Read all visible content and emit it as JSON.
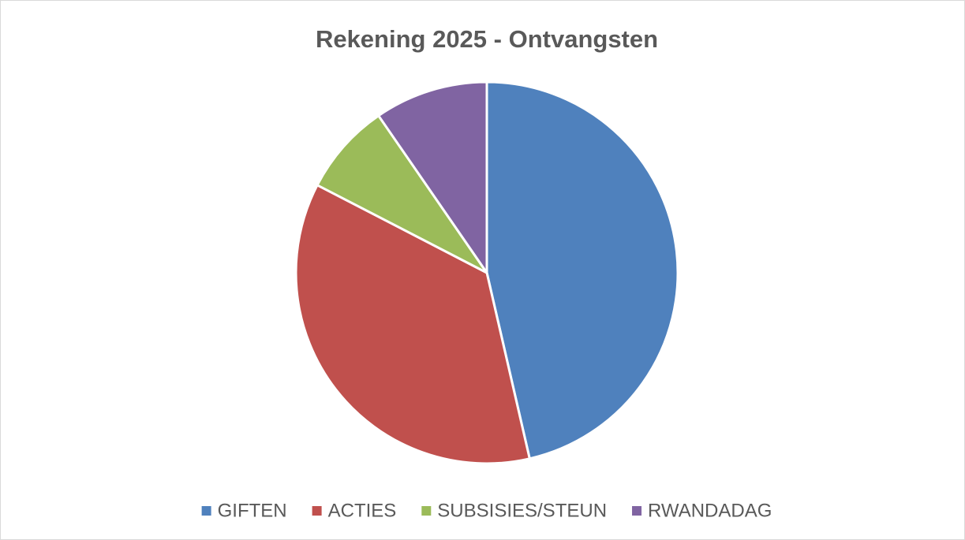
{
  "chart_data": {
    "type": "pie",
    "title": "Rekening 2025 - Ontvangsten",
    "categories": [
      "GIFTEN",
      "ACTIES",
      "SUBSISIES/STEUN",
      "RWANDADAG"
    ],
    "values": [
      46.4,
      36.2,
      7.8,
      9.6
    ],
    "colors": [
      "#4f81bd",
      "#c0504d",
      "#9bbb59",
      "#8064a2"
    ],
    "legend": "bottom"
  }
}
